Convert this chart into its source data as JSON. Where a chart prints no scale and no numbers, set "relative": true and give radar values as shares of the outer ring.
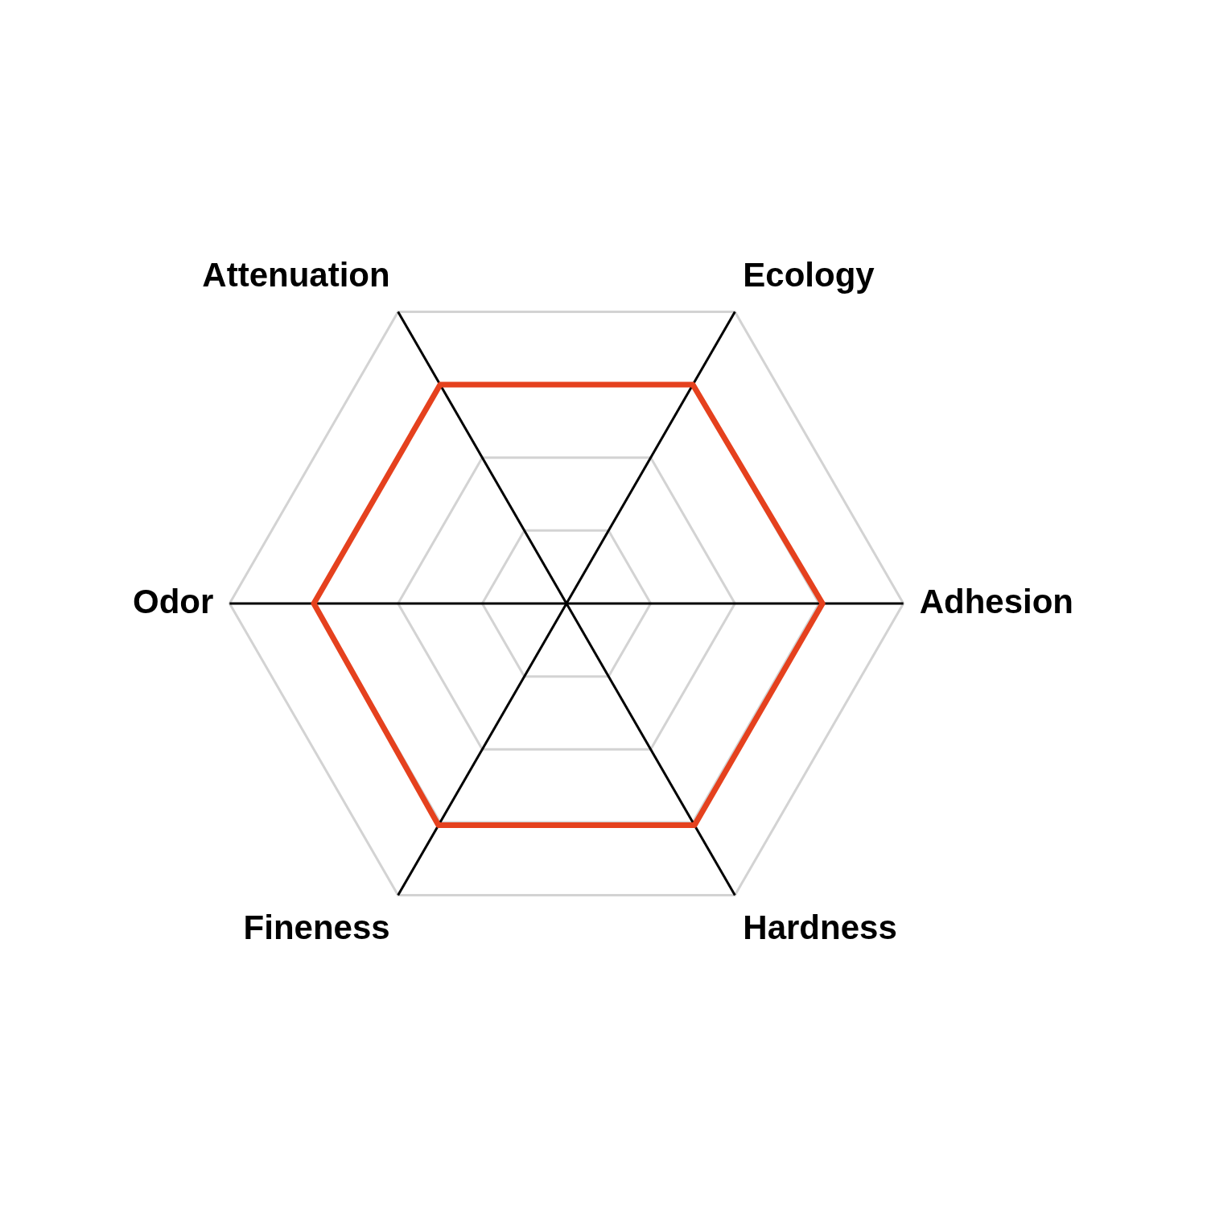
{
  "chart_data": {
    "type": "radar",
    "categories": [
      "Attenuation",
      "Ecology",
      "Adhesion",
      "Hardness",
      "Fineness",
      "Odor"
    ],
    "series": [
      {
        "color": "#e5411e",
        "values": [
          0.75,
          0.75,
          0.76,
          0.76,
          0.76,
          0.75
        ]
      }
    ],
    "relative": true,
    "grid": true,
    "marker": "none"
  }
}
